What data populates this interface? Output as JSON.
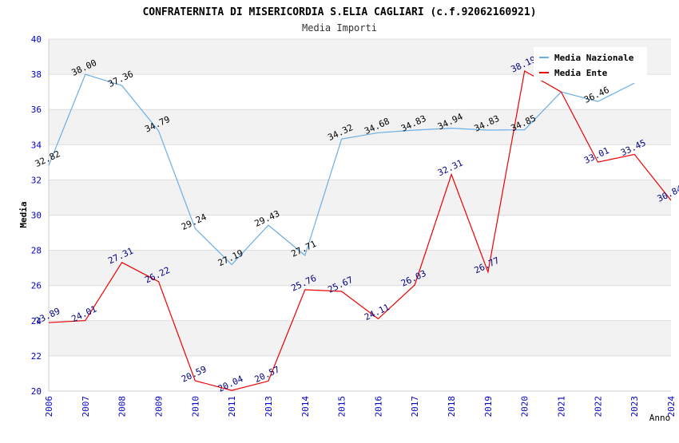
{
  "chart_data": {
    "type": "line",
    "title": "CONFRATERNITA DI MISERICORDIA S.ELIA CAGLIARI (c.f.92062160921)",
    "subtitle": "Media Importi",
    "xlabel": "Anno",
    "ylabel": "Media",
    "ylim": [
      20,
      40
    ],
    "yticks": [
      20,
      22,
      24,
      26,
      28,
      30,
      32,
      34,
      36,
      38,
      40
    ],
    "categories": [
      "2006",
      "2007",
      "2008",
      "2009",
      "2010",
      "2011",
      "2013",
      "2014",
      "2015",
      "2016",
      "2017",
      "2018",
      "2019",
      "2020",
      "2021",
      "2022",
      "2023",
      "2024"
    ],
    "grid": "horizontal bands",
    "legend_position": "top-right",
    "series": [
      {
        "name": "Media Nazionale",
        "color": "#6aaee8",
        "label_color": "#000000",
        "values": [
          32.82,
          38.0,
          37.36,
          34.79,
          29.24,
          27.19,
          29.43,
          27.71,
          34.32,
          34.68,
          34.83,
          34.94,
          34.83,
          34.85,
          37.0,
          36.46,
          37.5,
          null
        ],
        "labels": [
          "32.82",
          "38.00",
          "37.36",
          "34.79",
          "29.24",
          "27.19",
          "29.43",
          "27.71",
          "34.32",
          "34.68",
          "34.83",
          "34.94",
          "34.83",
          "34.85",
          "",
          "36.46",
          "",
          ""
        ]
      },
      {
        "name": "Media Ente",
        "color": "#ee0000",
        "label_color": "#000080",
        "values": [
          23.89,
          24.01,
          27.31,
          26.22,
          20.59,
          20.04,
          20.57,
          25.76,
          25.67,
          24.11,
          26.03,
          32.31,
          26.77,
          38.19,
          37.0,
          33.01,
          33.45,
          30.84
        ],
        "labels": [
          "23.89",
          "24.01",
          "27.31",
          "26.22",
          "20.59",
          "20.04",
          "20.57",
          "25.76",
          "25.67",
          "24.11",
          "26.03",
          "32.31",
          "26.77",
          "38.19",
          "",
          "33.01",
          "33.45",
          "30.84"
        ]
      }
    ]
  }
}
